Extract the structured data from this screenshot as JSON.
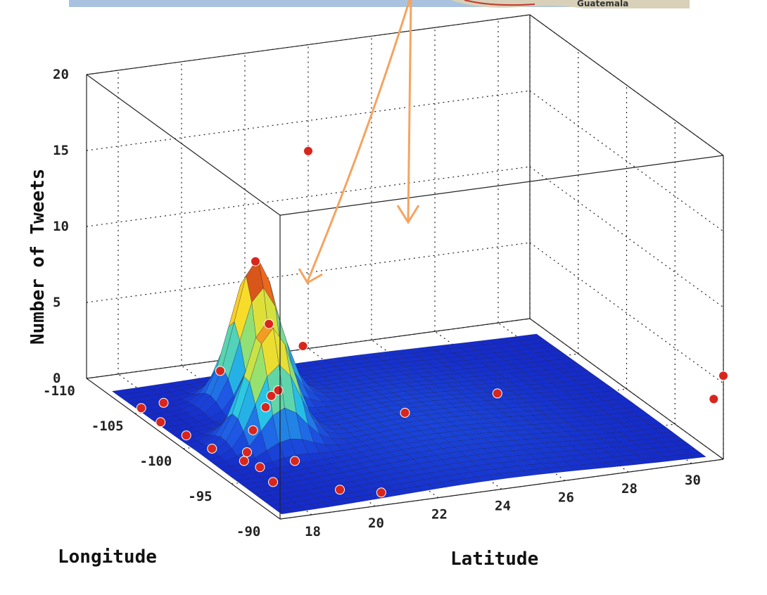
{
  "chart_data": {
    "type": "surface",
    "zlabel": "Number of Tweets",
    "xlabel": "Longitude",
    "ylabel": "Latitude",
    "zlim": [
      0,
      20
    ],
    "xlim": [
      -110,
      -90
    ],
    "ylim": [
      17,
      31
    ],
    "z_ticks": [
      "0",
      "5",
      "10",
      "15",
      "20"
    ],
    "x_ticks": [
      "-110",
      "-105",
      "-100",
      "-95",
      "-90"
    ],
    "y_ticks": [
      "18",
      "20",
      "22",
      "24",
      "26",
      "28",
      "30"
    ],
    "grid": true,
    "peaks": [
      {
        "lon": -104,
        "lat": 20.5,
        "value": 9.5
      },
      {
        "lon": -99,
        "lat": 19.4,
        "value": 8.0
      }
    ],
    "points": [
      {
        "lon": -110,
        "lat": 24,
        "z": 13
      },
      {
        "lon": -90,
        "lat": 31,
        "z": 5.5
      },
      {
        "lon": -91,
        "lat": 31,
        "z": 3.5
      },
      {
        "lon": -104,
        "lat": 20.5,
        "z": 9.5
      },
      {
        "lon": -99,
        "lat": 19.4,
        "z": 8.0
      },
      {
        "lon": -104,
        "lat": 22,
        "z": 3.5
      },
      {
        "lon": -97,
        "lat": 26,
        "z": 2.5
      },
      {
        "lon": -100,
        "lat": 20,
        "z": 3.0
      },
      {
        "lon": -106,
        "lat": 20,
        "z": 1.5
      },
      {
        "lon": -104,
        "lat": 21,
        "z": 0.5
      },
      {
        "lon": -100,
        "lat": 24,
        "z": 0.4
      },
      {
        "lon": -92,
        "lat": 19.5,
        "z": 0.3
      },
      {
        "lon": -91,
        "lat": 20.5,
        "z": 0.3
      },
      {
        "lon": -94,
        "lat": 18,
        "z": 0.3
      },
      {
        "lon": -96,
        "lat": 18.2,
        "z": 0.3
      },
      {
        "lon": -97,
        "lat": 18.0,
        "z": 0.3
      },
      {
        "lon": -98,
        "lat": 18.4,
        "z": 0.3
      },
      {
        "lon": -99,
        "lat": 17.6,
        "z": 0.3
      },
      {
        "lon": -101,
        "lat": 17.4,
        "z": 0.3
      },
      {
        "lon": -103,
        "lat": 17.2,
        "z": 0.3
      },
      {
        "lon": -105,
        "lat": 17.2,
        "z": 0.3
      },
      {
        "lon": -104,
        "lat": 17.6,
        "z": 1.0
      },
      {
        "lon": -100,
        "lat": 19.2,
        "z": 0.6
      },
      {
        "lon": -100,
        "lat": 19.6,
        "z": 2.0
      },
      {
        "lon": -96,
        "lat": 19.3,
        "z": 0.4
      }
    ]
  },
  "map_strip": {
    "label": "Guatemala"
  },
  "colors": {
    "surface_low": "#1f3fd6",
    "surface_high": "#8b0000",
    "points": "#d9261c",
    "arrows": "#f4a460",
    "map_strip": "#a9c2e0"
  }
}
